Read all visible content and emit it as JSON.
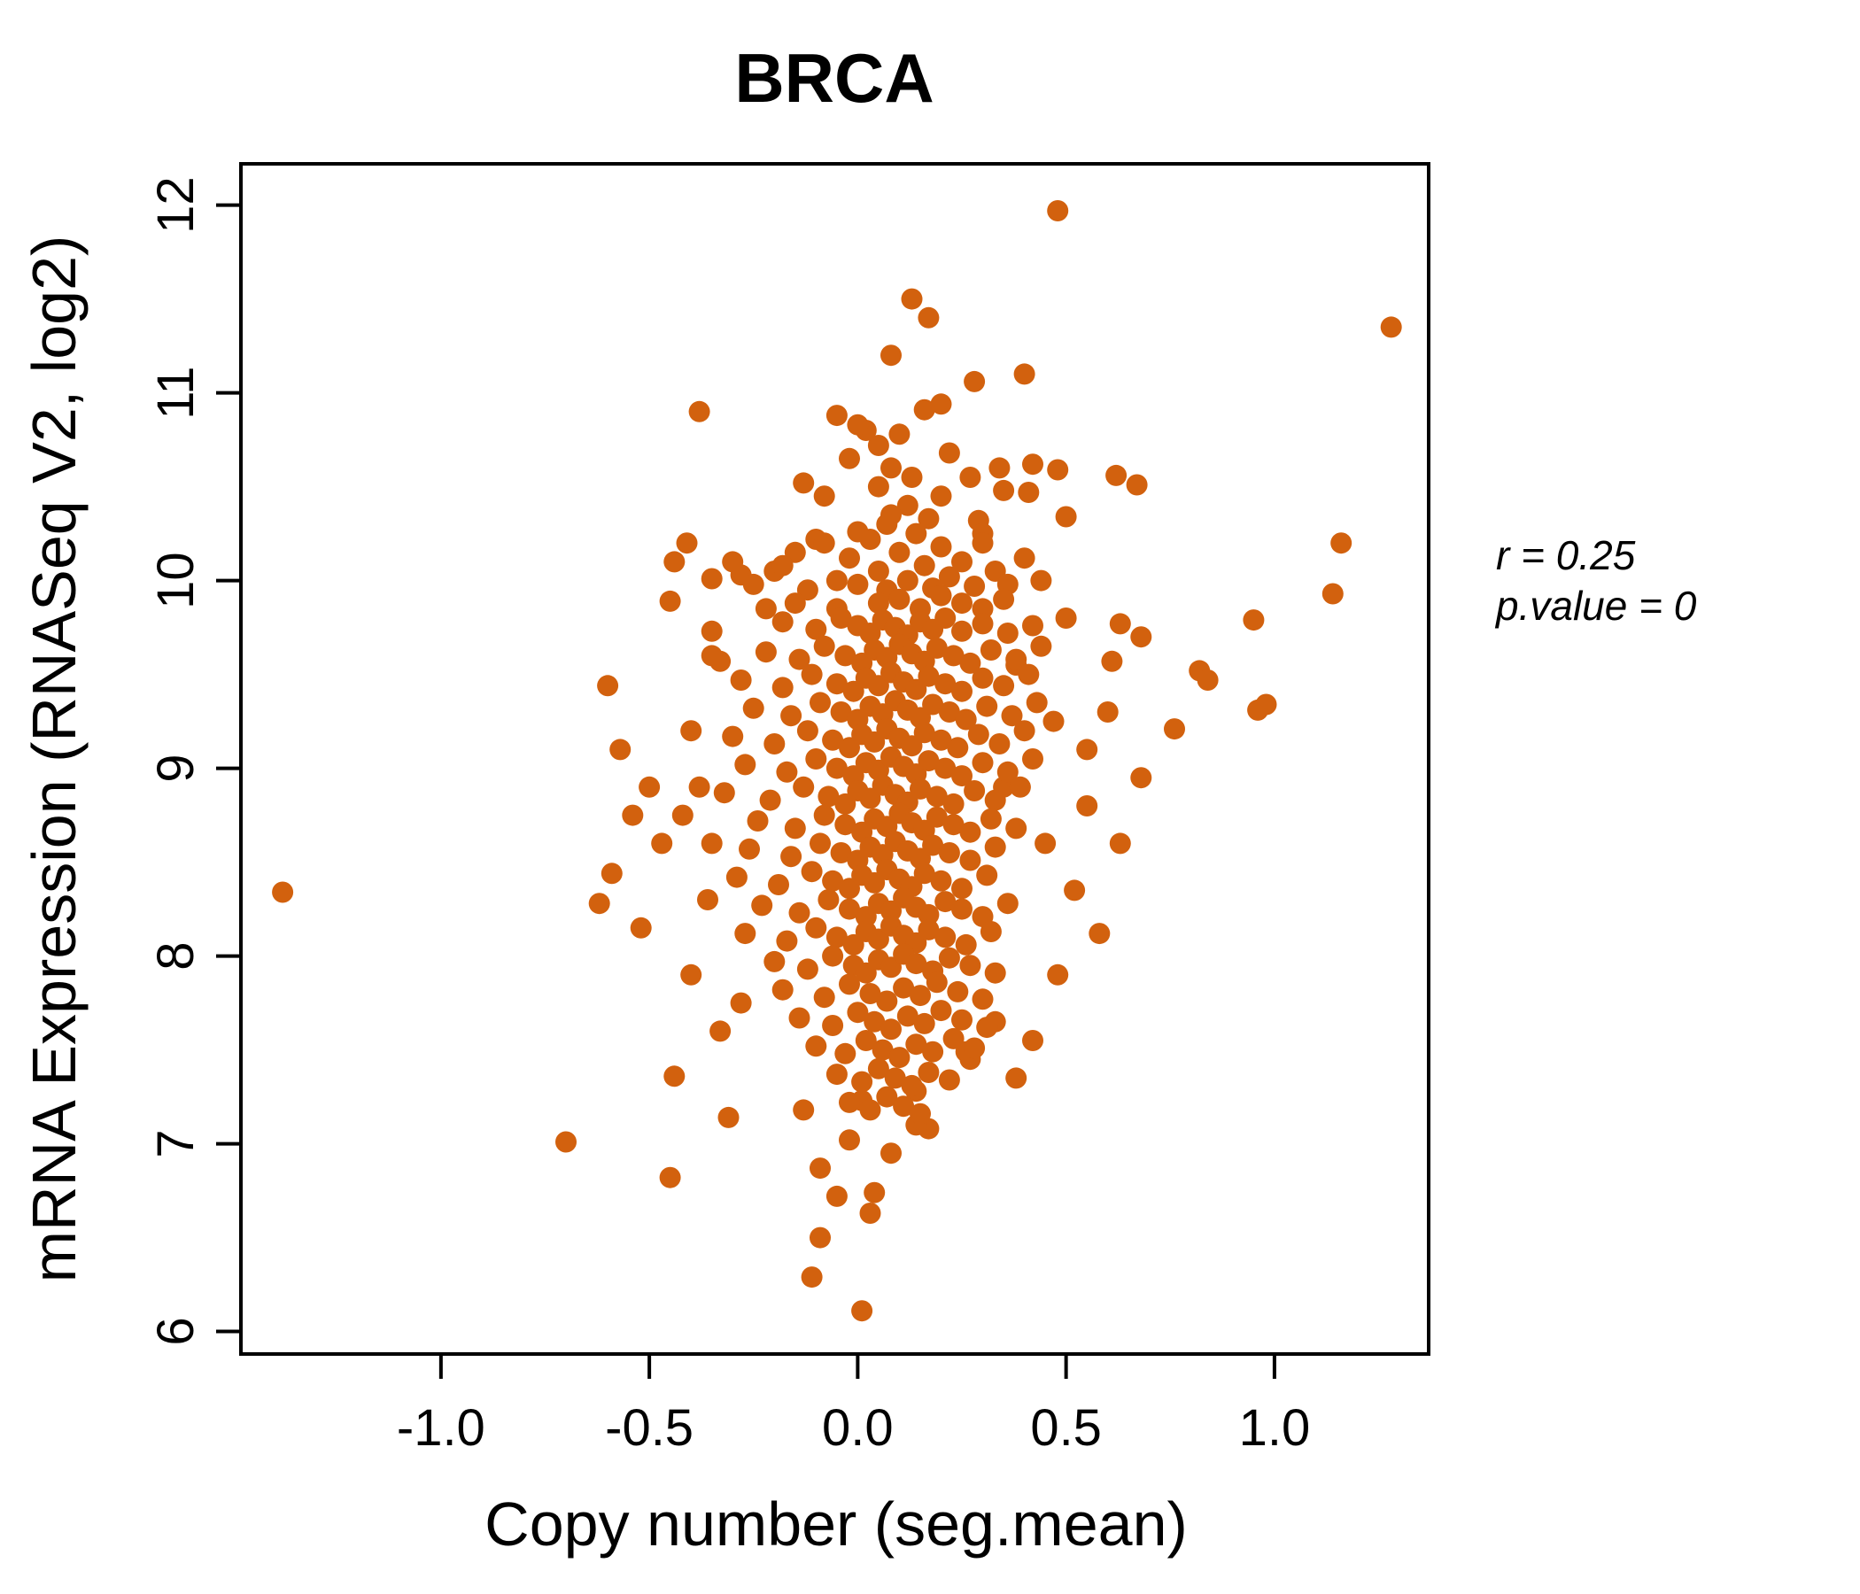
{
  "title": {
    "text": "BRCA",
    "color": "#D2610E"
  },
  "annotation": {
    "line1": "r = 0.25",
    "line2": "p.value = 0"
  },
  "x_axis": {
    "label": "Copy number (seg.mean)",
    "tick_labels": [
      "-1.0",
      "-0.5",
      "0.0",
      "0.5",
      "1.0"
    ]
  },
  "y_axis": {
    "label": "mRNA Expression (RNASeq V2, log2)",
    "tick_labels": [
      "6",
      "7",
      "8",
      "9",
      "10",
      "11",
      "12"
    ]
  },
  "chart_data": {
    "type": "scatter",
    "title": "BRCA",
    "xlabel": "Copy number (seg.mean)",
    "ylabel": "mRNA Expression (RNASeq V2, log2)",
    "xlim": [
      -1.48,
      1.37
    ],
    "ylim": [
      5.88,
      12.22
    ],
    "x_ticks": [
      -1.0,
      -0.5,
      0.0,
      0.5,
      1.0
    ],
    "y_ticks": [
      6,
      7,
      8,
      9,
      10,
      11,
      12
    ],
    "grid": false,
    "legend": false,
    "point_color": "#D2610E",
    "point_radius_px": 12,
    "correlation_r": 0.25,
    "p_value": 0,
    "points": [
      [
        0.48,
        11.97
      ],
      [
        0.13,
        11.5
      ],
      [
        0.17,
        11.4
      ],
      [
        1.28,
        11.35
      ],
      [
        0.08,
        11.2
      ],
      [
        0.28,
        11.06
      ],
      [
        0.4,
        11.1
      ],
      [
        -0.38,
        10.9
      ],
      [
        0.42,
        10.62
      ],
      [
        0.34,
        10.6
      ],
      [
        0.29,
        10.32
      ],
      [
        0.3,
        10.25
      ],
      [
        1.16,
        10.2
      ],
      [
        1.14,
        9.93
      ],
      [
        0.95,
        9.79
      ],
      [
        0.48,
        10.59
      ],
      [
        0.62,
        10.56
      ],
      [
        0.67,
        10.51
      ],
      [
        0.41,
        10.47
      ],
      [
        0.5,
        10.34
      ],
      [
        0.5,
        9.8
      ],
      [
        0.63,
        9.77
      ],
      [
        0.68,
        9.7
      ],
      [
        0.61,
        9.57
      ],
      [
        0.82,
        9.52
      ],
      [
        0.76,
        9.21
      ],
      [
        0.96,
        9.31
      ],
      [
        0.98,
        9.34
      ],
      [
        0.84,
        9.47
      ],
      [
        -1.38,
        8.34
      ],
      [
        -0.7,
        7.01
      ],
      [
        -0.45,
        6.82
      ],
      [
        -0.6,
        9.44
      ],
      [
        -0.41,
        10.2
      ],
      [
        -0.44,
        10.1
      ],
      [
        -0.35,
        10.01
      ],
      [
        -0.28,
        10.03
      ],
      [
        -0.45,
        9.89
      ],
      [
        -0.35,
        9.73
      ],
      [
        -0.33,
        9.57
      ],
      [
        -0.52,
        8.15
      ],
      [
        -0.59,
        8.44
      ],
      [
        -0.62,
        8.28
      ],
      [
        -0.44,
        7.36
      ],
      [
        -0.31,
        7.14
      ],
      [
        -0.33,
        7.6
      ],
      [
        -0.57,
        9.1
      ],
      [
        -0.5,
        8.9
      ],
      [
        -0.47,
        8.6
      ],
      [
        -0.54,
        8.75
      ],
      [
        0.01,
        6.11
      ],
      [
        -0.11,
        6.29
      ],
      [
        -0.09,
        6.5
      ],
      [
        -0.05,
        6.72
      ],
      [
        0.04,
        6.74
      ],
      [
        0.03,
        6.63
      ],
      [
        -0.09,
        6.87
      ],
      [
        0.17,
        7.08
      ],
      [
        0.08,
        6.95
      ],
      [
        -0.02,
        7.02
      ],
      [
        0.14,
        7.1
      ],
      [
        -0.13,
        7.18
      ],
      [
        0.01,
        7.23
      ],
      [
        0.14,
        7.28
      ],
      [
        0.68,
        8.95
      ],
      [
        0.63,
        8.6
      ],
      [
        0.58,
        8.12
      ],
      [
        0.52,
        8.35
      ],
      [
        0.48,
        7.9
      ],
      [
        0.42,
        7.55
      ],
      [
        0.38,
        7.35
      ],
      [
        0.45,
        8.6
      ],
      [
        0.55,
        8.8
      ],
      [
        0.6,
        9.3
      ],
      [
        0.55,
        9.1
      ],
      [
        0.47,
        9.25
      ],
      [
        0.35,
        8.9
      ],
      [
        0.38,
        9.55
      ],
      [
        0.33,
        7.65
      ],
      [
        0.26,
        7.49
      ],
      [
        0.27,
        7.45
      ],
      [
        -0.05,
        10.88
      ],
      [
        0.02,
        10.8
      ],
      [
        0.1,
        10.78
      ],
      [
        0.05,
        10.72
      ],
      [
        -0.02,
        10.65
      ],
      [
        0.08,
        10.6
      ],
      [
        0.16,
        10.91
      ],
      [
        0.2,
        10.94
      ],
      [
        0.13,
        10.55
      ],
      [
        0.22,
        10.68
      ],
      [
        0.05,
        10.5
      ],
      [
        -0.08,
        10.45
      ],
      [
        0.0,
        10.83
      ],
      [
        0.12,
        10.4
      ],
      [
        0.2,
        10.45
      ],
      [
        0.27,
        10.55
      ],
      [
        0.17,
        10.33
      ],
      [
        0.08,
        10.35
      ],
      [
        -0.13,
        10.52
      ],
      [
        0.35,
        10.48
      ],
      [
        -0.3,
        10.1
      ],
      [
        -0.25,
        9.98
      ],
      [
        -0.2,
        10.05
      ],
      [
        -0.15,
        10.15
      ],
      [
        -0.12,
        9.95
      ],
      [
        -0.1,
        10.22
      ],
      [
        0.0,
        10.26
      ],
      [
        0.07,
        10.3
      ],
      [
        -0.08,
        10.2
      ],
      [
        -0.05,
        10.0
      ],
      [
        -0.02,
        10.12
      ],
      [
        0.0,
        9.98
      ],
      [
        0.03,
        10.22
      ],
      [
        0.05,
        10.05
      ],
      [
        0.07,
        9.95
      ],
      [
        0.1,
        10.15
      ],
      [
        0.12,
        10.0
      ],
      [
        0.14,
        10.25
      ],
      [
        0.16,
        10.08
      ],
      [
        0.18,
        9.96
      ],
      [
        0.2,
        10.18
      ],
      [
        0.22,
        10.02
      ],
      [
        0.25,
        10.1
      ],
      [
        0.28,
        9.97
      ],
      [
        0.3,
        10.2
      ],
      [
        0.33,
        10.05
      ],
      [
        0.36,
        9.98
      ],
      [
        0.4,
        10.12
      ],
      [
        0.44,
        10.0
      ],
      [
        0.35,
        9.9
      ],
      [
        0.25,
        9.88
      ],
      [
        0.15,
        9.85
      ],
      [
        0.05,
        9.88
      ],
      [
        -0.05,
        9.85
      ],
      [
        -0.15,
        9.88
      ],
      [
        -0.22,
        9.85
      ],
      [
        0.1,
        9.9
      ],
      [
        0.2,
        9.92
      ],
      [
        0.3,
        9.85
      ],
      [
        -0.18,
        10.08
      ],
      [
        -0.18,
        9.78
      ],
      [
        -0.1,
        9.74
      ],
      [
        -0.04,
        9.8
      ],
      [
        0.0,
        9.76
      ],
      [
        0.03,
        9.72
      ],
      [
        0.06,
        9.79
      ],
      [
        0.09,
        9.75
      ],
      [
        0.12,
        9.71
      ],
      [
        0.15,
        9.78
      ],
      [
        0.18,
        9.74
      ],
      [
        0.21,
        9.8
      ],
      [
        0.25,
        9.73
      ],
      [
        0.3,
        9.77
      ],
      [
        0.36,
        9.72
      ],
      [
        0.42,
        9.76
      ],
      [
        -0.22,
        9.62
      ],
      [
        -0.14,
        9.58
      ],
      [
        -0.08,
        9.65
      ],
      [
        -0.03,
        9.6
      ],
      [
        0.01,
        9.56
      ],
      [
        0.04,
        9.63
      ],
      [
        0.07,
        9.59
      ],
      [
        0.1,
        9.66
      ],
      [
        0.13,
        9.61
      ],
      [
        0.16,
        9.57
      ],
      [
        0.19,
        9.64
      ],
      [
        0.23,
        9.6
      ],
      [
        0.27,
        9.56
      ],
      [
        0.32,
        9.63
      ],
      [
        0.38,
        9.58
      ],
      [
        0.44,
        9.65
      ],
      [
        -0.28,
        9.47
      ],
      [
        -0.18,
        9.43
      ],
      [
        -0.11,
        9.5
      ],
      [
        -0.05,
        9.45
      ],
      [
        -0.01,
        9.41
      ],
      [
        0.02,
        9.48
      ],
      [
        0.05,
        9.44
      ],
      [
        0.08,
        9.51
      ],
      [
        0.11,
        9.46
      ],
      [
        0.14,
        9.42
      ],
      [
        0.17,
        9.49
      ],
      [
        0.21,
        9.45
      ],
      [
        0.25,
        9.41
      ],
      [
        0.3,
        9.48
      ],
      [
        0.35,
        9.44
      ],
      [
        0.41,
        9.5
      ],
      [
        -0.25,
        9.32
      ],
      [
        -0.16,
        9.28
      ],
      [
        -0.09,
        9.35
      ],
      [
        -0.04,
        9.3
      ],
      [
        0.0,
        9.26
      ],
      [
        0.03,
        9.33
      ],
      [
        0.06,
        9.29
      ],
      [
        0.09,
        9.36
      ],
      [
        0.12,
        9.31
      ],
      [
        0.15,
        9.27
      ],
      [
        0.18,
        9.34
      ],
      [
        0.22,
        9.3
      ],
      [
        0.26,
        9.26
      ],
      [
        0.31,
        9.33
      ],
      [
        0.37,
        9.28
      ],
      [
        0.43,
        9.35
      ],
      [
        -0.3,
        9.17
      ],
      [
        -0.2,
        9.13
      ],
      [
        -0.12,
        9.2
      ],
      [
        -0.06,
        9.15
      ],
      [
        -0.02,
        9.11
      ],
      [
        0.01,
        9.18
      ],
      [
        0.04,
        9.14
      ],
      [
        0.07,
        9.21
      ],
      [
        0.1,
        9.16
      ],
      [
        0.13,
        9.12
      ],
      [
        0.16,
        9.19
      ],
      [
        0.2,
        9.15
      ],
      [
        0.24,
        9.11
      ],
      [
        0.29,
        9.18
      ],
      [
        0.34,
        9.13
      ],
      [
        0.4,
        9.2
      ],
      [
        -0.27,
        9.02
      ],
      [
        -0.17,
        8.98
      ],
      [
        -0.1,
        9.05
      ],
      [
        -0.05,
        9.0
      ],
      [
        -0.01,
        8.96
      ],
      [
        0.02,
        9.03
      ],
      [
        0.05,
        8.99
      ],
      [
        0.08,
        9.06
      ],
      [
        0.11,
        9.01
      ],
      [
        0.14,
        8.97
      ],
      [
        0.17,
        9.04
      ],
      [
        0.21,
        9.0
      ],
      [
        0.25,
        8.96
      ],
      [
        0.3,
        9.03
      ],
      [
        0.36,
        8.98
      ],
      [
        0.42,
        9.05
      ],
      [
        -0.32,
        8.87
      ],
      [
        -0.21,
        8.83
      ],
      [
        -0.13,
        8.9
      ],
      [
        -0.07,
        8.85
      ],
      [
        -0.03,
        8.81
      ],
      [
        0.0,
        8.88
      ],
      [
        0.03,
        8.84
      ],
      [
        0.06,
        8.91
      ],
      [
        0.09,
        8.86
      ],
      [
        0.12,
        8.82
      ],
      [
        0.15,
        8.89
      ],
      [
        0.19,
        8.85
      ],
      [
        0.23,
        8.81
      ],
      [
        0.28,
        8.88
      ],
      [
        0.33,
        8.83
      ],
      [
        0.39,
        8.9
      ],
      [
        -0.24,
        8.72
      ],
      [
        -0.15,
        8.68
      ],
      [
        -0.08,
        8.75
      ],
      [
        -0.03,
        8.7
      ],
      [
        0.01,
        8.66
      ],
      [
        0.04,
        8.73
      ],
      [
        0.07,
        8.69
      ],
      [
        0.1,
        8.76
      ],
      [
        0.13,
        8.71
      ],
      [
        0.16,
        8.67
      ],
      [
        0.19,
        8.74
      ],
      [
        0.23,
        8.7
      ],
      [
        0.27,
        8.66
      ],
      [
        0.32,
        8.73
      ],
      [
        0.38,
        8.68
      ],
      [
        -0.26,
        8.57
      ],
      [
        -0.16,
        8.53
      ],
      [
        -0.09,
        8.6
      ],
      [
        -0.04,
        8.55
      ],
      [
        0.0,
        8.51
      ],
      [
        0.03,
        8.58
      ],
      [
        0.06,
        8.54
      ],
      [
        0.09,
        8.61
      ],
      [
        0.12,
        8.56
      ],
      [
        0.15,
        8.52
      ],
      [
        0.18,
        8.59
      ],
      [
        0.22,
        8.55
      ],
      [
        0.27,
        8.51
      ],
      [
        0.33,
        8.58
      ],
      [
        -0.29,
        8.42
      ],
      [
        -0.19,
        8.38
      ],
      [
        -0.11,
        8.45
      ],
      [
        -0.06,
        8.4
      ],
      [
        -0.02,
        8.36
      ],
      [
        0.01,
        8.43
      ],
      [
        0.04,
        8.39
      ],
      [
        0.07,
        8.46
      ],
      [
        0.1,
        8.41
      ],
      [
        0.13,
        8.37
      ],
      [
        0.16,
        8.44
      ],
      [
        0.2,
        8.4
      ],
      [
        0.25,
        8.36
      ],
      [
        0.31,
        8.43
      ],
      [
        -0.23,
        8.27
      ],
      [
        -0.14,
        8.23
      ],
      [
        -0.07,
        8.3
      ],
      [
        -0.02,
        8.25
      ],
      [
        0.02,
        8.21
      ],
      [
        0.05,
        8.28
      ],
      [
        0.08,
        8.24
      ],
      [
        0.11,
        8.31
      ],
      [
        0.14,
        8.26
      ],
      [
        0.17,
        8.22
      ],
      [
        0.21,
        8.29
      ],
      [
        0.25,
        8.25
      ],
      [
        0.3,
        8.21
      ],
      [
        0.36,
        8.28
      ],
      [
        -0.27,
        8.12
      ],
      [
        -0.17,
        8.08
      ],
      [
        -0.1,
        8.15
      ],
      [
        -0.05,
        8.1
      ],
      [
        -0.01,
        8.06
      ],
      [
        0.02,
        8.13
      ],
      [
        0.05,
        8.09
      ],
      [
        0.08,
        8.16
      ],
      [
        0.11,
        8.11
      ],
      [
        0.14,
        8.07
      ],
      [
        0.17,
        8.14
      ],
      [
        0.21,
        8.1
      ],
      [
        0.26,
        8.06
      ],
      [
        0.32,
        8.13
      ],
      [
        -0.2,
        7.97
      ],
      [
        -0.12,
        7.93
      ],
      [
        -0.06,
        8.0
      ],
      [
        -0.01,
        7.95
      ],
      [
        0.02,
        7.91
      ],
      [
        0.05,
        7.98
      ],
      [
        0.08,
        7.94
      ],
      [
        0.11,
        8.01
      ],
      [
        0.14,
        7.96
      ],
      [
        0.18,
        7.92
      ],
      [
        0.22,
        7.99
      ],
      [
        0.27,
        7.95
      ],
      [
        0.33,
        7.91
      ],
      [
        -0.18,
        7.82
      ],
      [
        -0.08,
        7.78
      ],
      [
        -0.02,
        7.85
      ],
      [
        0.03,
        7.8
      ],
      [
        0.07,
        7.76
      ],
      [
        0.11,
        7.83
      ],
      [
        0.15,
        7.79
      ],
      [
        0.19,
        7.86
      ],
      [
        0.24,
        7.81
      ],
      [
        0.3,
        7.77
      ],
      [
        -0.14,
        7.67
      ],
      [
        -0.06,
        7.63
      ],
      [
        0.0,
        7.7
      ],
      [
        0.04,
        7.65
      ],
      [
        0.08,
        7.61
      ],
      [
        0.12,
        7.68
      ],
      [
        0.16,
        7.64
      ],
      [
        0.2,
        7.71
      ],
      [
        0.25,
        7.66
      ],
      [
        0.31,
        7.62
      ],
      [
        -0.1,
        7.52
      ],
      [
        -0.03,
        7.48
      ],
      [
        0.02,
        7.55
      ],
      [
        0.06,
        7.5
      ],
      [
        0.1,
        7.46
      ],
      [
        0.14,
        7.53
      ],
      [
        0.18,
        7.49
      ],
      [
        0.23,
        7.56
      ],
      [
        0.28,
        7.51
      ],
      [
        -0.05,
        7.37
      ],
      [
        0.01,
        7.33
      ],
      [
        0.05,
        7.4
      ],
      [
        0.09,
        7.35
      ],
      [
        0.13,
        7.31
      ],
      [
        0.17,
        7.38
      ],
      [
        0.22,
        7.34
      ],
      [
        -0.02,
        7.22
      ],
      [
        0.03,
        7.18
      ],
      [
        0.07,
        7.25
      ],
      [
        0.11,
        7.2
      ],
      [
        0.15,
        7.16
      ],
      [
        -0.35,
        9.6
      ],
      [
        -0.4,
        9.2
      ],
      [
        -0.38,
        8.9
      ],
      [
        -0.35,
        8.6
      ],
      [
        -0.42,
        8.75
      ],
      [
        -0.36,
        8.3
      ],
      [
        -0.4,
        7.9
      ],
      [
        -0.28,
        7.75
      ]
    ]
  }
}
